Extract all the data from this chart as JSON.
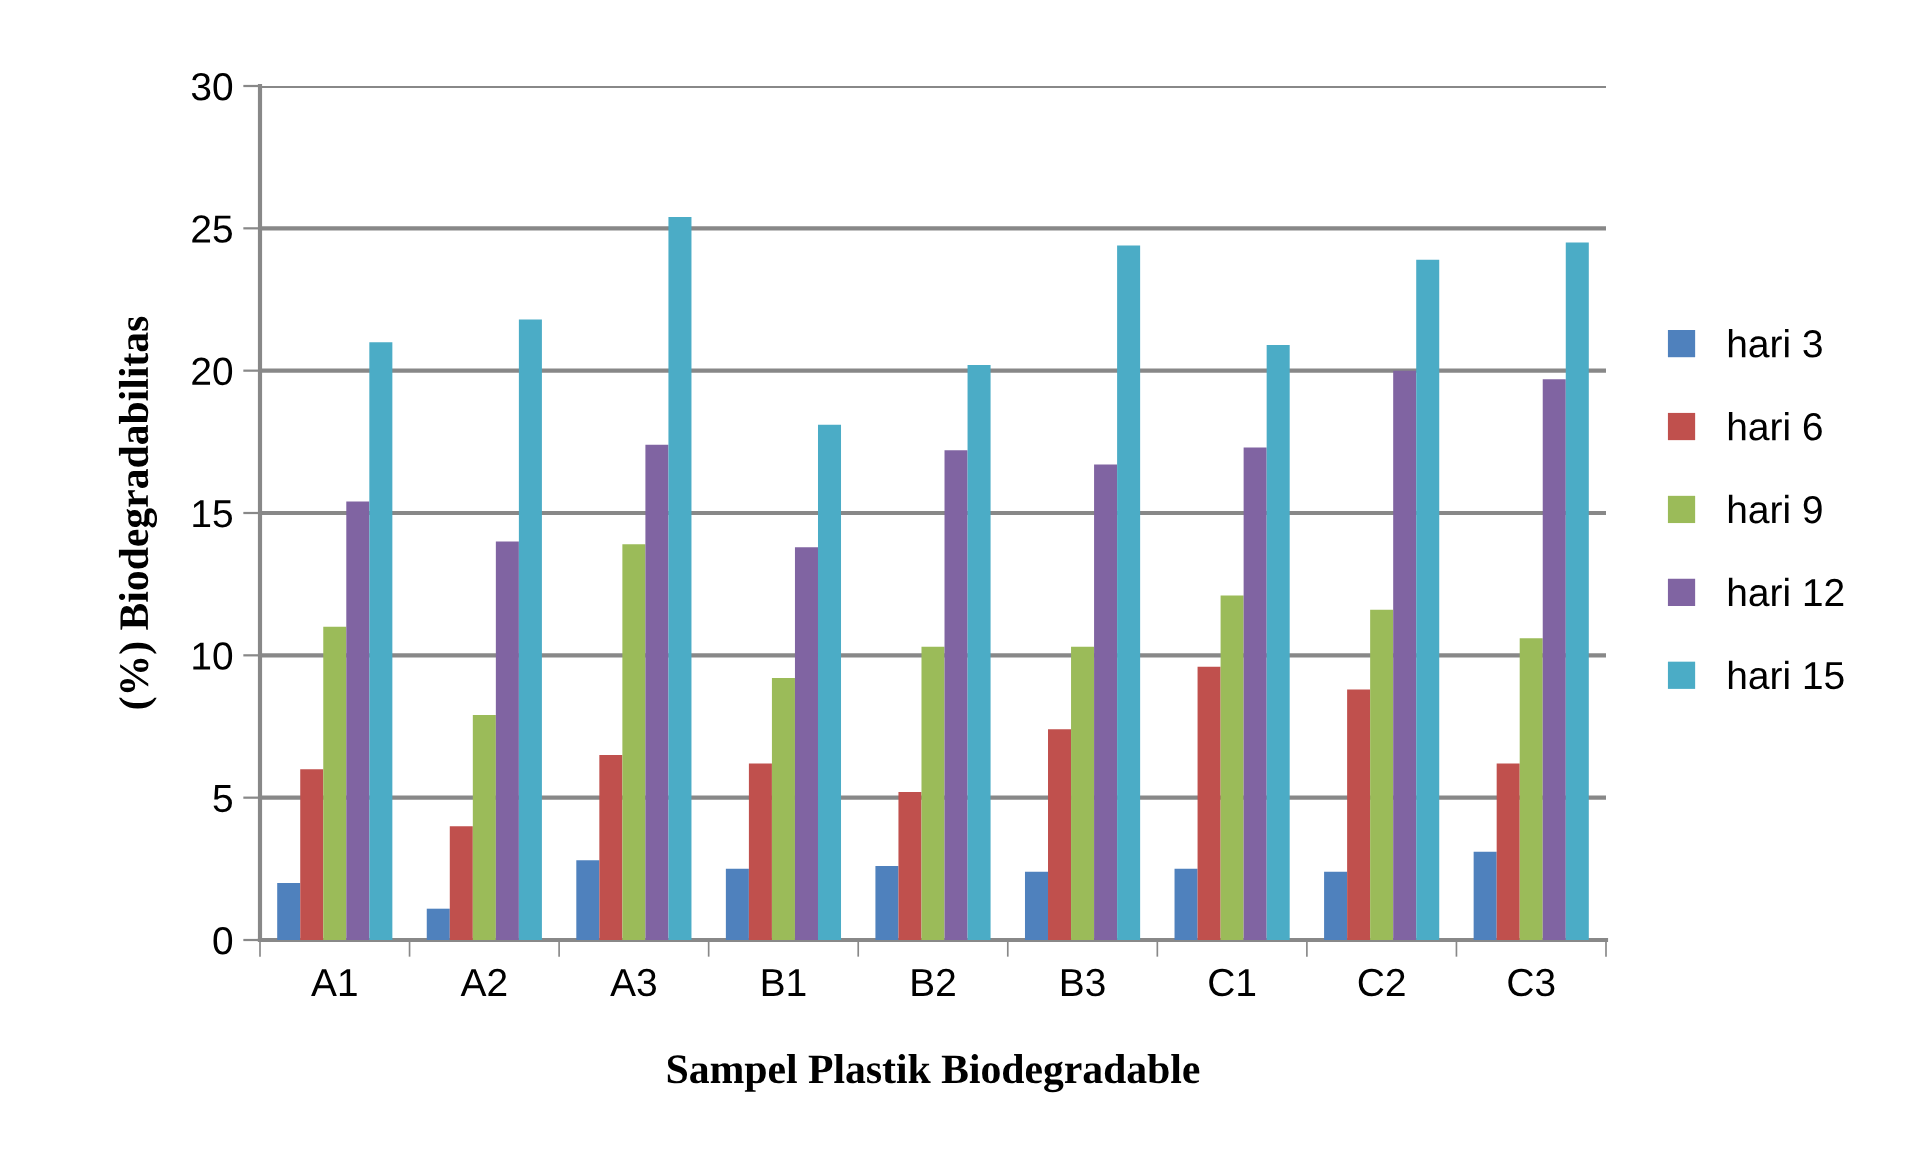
{
  "chart_data": {
    "type": "bar",
    "xlabel": "Sampel Plastik Biodegradable",
    "ylabel": "(%) Biodegradabilitas",
    "categories": [
      "A1",
      "A2",
      "A3",
      "B1",
      "B2",
      "B3",
      "C1",
      "C2",
      "C3"
    ],
    "series": [
      {
        "name": "hari 3",
        "color": "#4f81bd",
        "values": [
          2.0,
          1.1,
          2.8,
          2.5,
          2.6,
          2.4,
          2.5,
          2.4,
          3.1
        ]
      },
      {
        "name": "hari 6",
        "color": "#c0504d",
        "values": [
          6.0,
          4.0,
          6.5,
          6.2,
          5.2,
          7.4,
          9.6,
          8.8,
          6.2
        ]
      },
      {
        "name": "hari 9",
        "color": "#9bbb59",
        "values": [
          11.0,
          7.9,
          13.9,
          9.2,
          10.3,
          10.3,
          12.1,
          11.6,
          10.6
        ]
      },
      {
        "name": "hari 12",
        "color": "#8064a2",
        "values": [
          15.4,
          14.0,
          17.4,
          13.8,
          17.2,
          16.7,
          17.3,
          20.0,
          19.7
        ]
      },
      {
        "name": "hari 15",
        "color": "#4bacc6",
        "values": [
          21.0,
          21.8,
          25.4,
          18.1,
          20.2,
          24.4,
          20.9,
          23.9,
          24.5
        ]
      }
    ],
    "ylim": [
      0,
      30
    ],
    "yticks": [
      0,
      5,
      10,
      15,
      20,
      25,
      30
    ],
    "grid": "y",
    "legend": "right"
  }
}
